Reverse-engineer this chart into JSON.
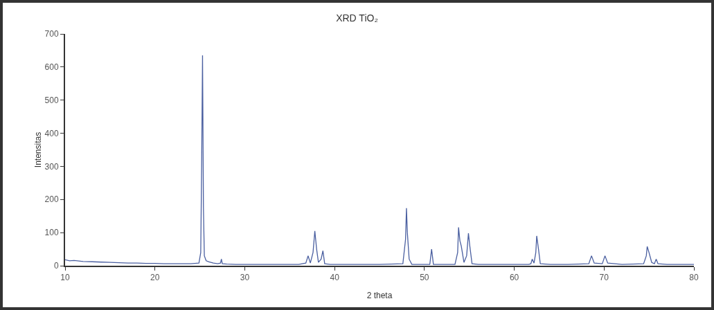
{
  "chart_data": {
    "type": "line",
    "title": "XRD TiO₂",
    "xlabel": "2 theta",
    "ylabel": "Intensitas",
    "x": [
      10,
      10.5,
      11,
      12,
      13,
      14,
      15,
      16,
      17,
      18,
      19,
      20,
      21,
      22,
      23,
      24,
      24.9,
      25.1,
      25.2,
      25.3,
      25.4,
      25.5,
      25.7,
      26,
      26.5,
      27,
      27.3,
      27.4,
      27.5,
      28,
      29,
      30,
      32,
      34,
      36,
      36.8,
      37.05,
      37.3,
      37.6,
      37.8,
      38.0,
      38.2,
      38.5,
      38.7,
      38.9,
      39.5,
      42,
      45,
      47.6,
      47.9,
      48.0,
      48.1,
      48.3,
      48.6,
      50.6,
      50.8,
      51.0,
      53.4,
      53.7,
      53.8,
      53.95,
      54.1,
      54.4,
      54.7,
      54.9,
      55.05,
      55.3,
      56,
      58,
      61.6,
      61.85,
      62.0,
      62.2,
      62.4,
      62.5,
      62.7,
      62.9,
      64,
      66,
      68.3,
      68.6,
      68.9,
      69.8,
      70.1,
      70.4,
      72,
      74.4,
      74.7,
      74.8,
      75.0,
      75.3,
      75.6,
      75.8,
      76.0,
      77,
      79,
      80
    ],
    "series": [
      {
        "color": "#4a5fa0",
        "values": [
          18,
          15,
          16,
          13,
          12,
          11,
          10,
          9,
          8,
          8,
          7,
          7,
          6,
          6,
          6,
          6,
          8,
          40,
          300,
          635,
          174,
          30,
          15,
          12,
          8,
          6,
          8,
          20,
          6,
          5,
          4,
          4,
          4,
          4,
          4,
          8,
          30,
          8,
          40,
          105,
          50,
          10,
          20,
          45,
          6,
          4,
          4,
          4,
          6,
          80,
          174,
          100,
          20,
          4,
          4,
          50,
          4,
          4,
          40,
          116,
          75,
          60,
          10,
          30,
          98,
          60,
          6,
          4,
          4,
          4,
          6,
          20,
          8,
          40,
          90,
          50,
          6,
          4,
          4,
          6,
          30,
          8,
          6,
          30,
          8,
          4,
          6,
          30,
          58,
          40,
          10,
          6,
          20,
          6,
          4,
          4,
          4
        ]
      }
    ],
    "xlim": [
      10,
      80
    ],
    "xticks": [
      10,
      20,
      30,
      40,
      50,
      60,
      70,
      80
    ],
    "ylim": [
      0,
      700
    ],
    "yticks": [
      0,
      100,
      200,
      300,
      400,
      500,
      600,
      700
    ],
    "grid": false,
    "marker": "none",
    "line_style": "solid"
  }
}
